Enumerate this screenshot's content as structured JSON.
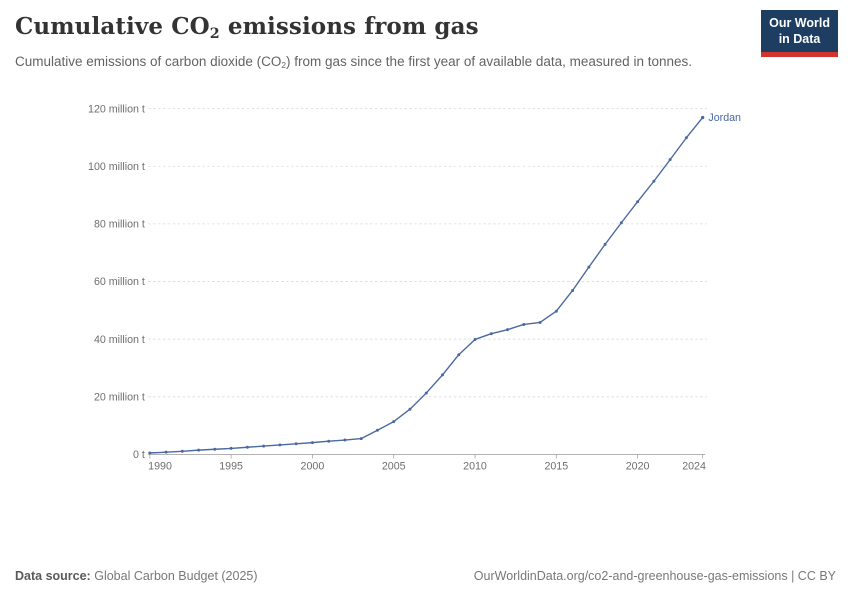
{
  "header": {
    "title_prefix": "Cumulative CO",
    "title_sub": "2",
    "title_suffix": " emissions from gas",
    "subtitle_prefix": "Cumulative emissions of carbon dioxide (CO",
    "subtitle_sub": "2",
    "subtitle_suffix": ") from gas since the first year of available data, measured in tonnes.",
    "logo_line1": "Our World",
    "logo_line2": "in Data",
    "logo_bg_color": "#1d3d63",
    "logo_stripe_color": "#d0342c"
  },
  "chart_data": {
    "type": "line",
    "title": "Cumulative CO2 emissions from gas",
    "entity_label": "Jordan",
    "unit": "tonnes",
    "xlabel": "",
    "ylabel": "",
    "xlim": [
      1990,
      2024
    ],
    "ylim_million_t": [
      0,
      120
    ],
    "grid": "horizontal dashed",
    "legend_position": "end-of-line",
    "line_color": "#4a69a2",
    "axis_text_color": "#6e6e6e",
    "grid_color": "#dadada",
    "axis_line_color": "#a8a8a8",
    "x_ticks": [
      1990,
      1995,
      2000,
      2005,
      2010,
      2015,
      2020,
      2024
    ],
    "y_ticks": [
      {
        "value": 0,
        "label": "0 t"
      },
      {
        "value": 20,
        "label": "20 million t"
      },
      {
        "value": 40,
        "label": "40 million t"
      },
      {
        "value": 60,
        "label": "60 million t"
      },
      {
        "value": 80,
        "label": "80 million t"
      },
      {
        "value": 100,
        "label": "100 million t"
      },
      {
        "value": 120,
        "label": "120 million t"
      }
    ],
    "series": [
      {
        "name": "Jordan",
        "color": "#4a69a2",
        "x": [
          1990,
          1991,
          1992,
          1993,
          1994,
          1995,
          1996,
          1997,
          1998,
          1999,
          2000,
          2001,
          2002,
          2003,
          2004,
          2005,
          2006,
          2007,
          2008,
          2009,
          2010,
          2011,
          2012,
          2013,
          2014,
          2015,
          2016,
          2017,
          2018,
          2019,
          2020,
          2021,
          2022,
          2023,
          2024
        ],
        "values_million_t": [
          0.5,
          0.8,
          1.1,
          1.5,
          1.8,
          2.1,
          2.5,
          2.9,
          3.3,
          3.7,
          4.1,
          4.6,
          5.0,
          5.5,
          8.4,
          11.4,
          15.7,
          21.3,
          27.6,
          34.6,
          39.9,
          41.9,
          43.3,
          45.1,
          45.8,
          49.7,
          56.9,
          65.0,
          72.9,
          80.4,
          87.7,
          94.8,
          102.3,
          109.9,
          116.9
        ]
      }
    ]
  },
  "footer": {
    "data_source_label": "Data source:",
    "data_source_value": "Global Carbon Budget (2025)",
    "link_text": "OurWorldinData.org/co2-and-greenhouse-gas-emissions | CC BY"
  }
}
